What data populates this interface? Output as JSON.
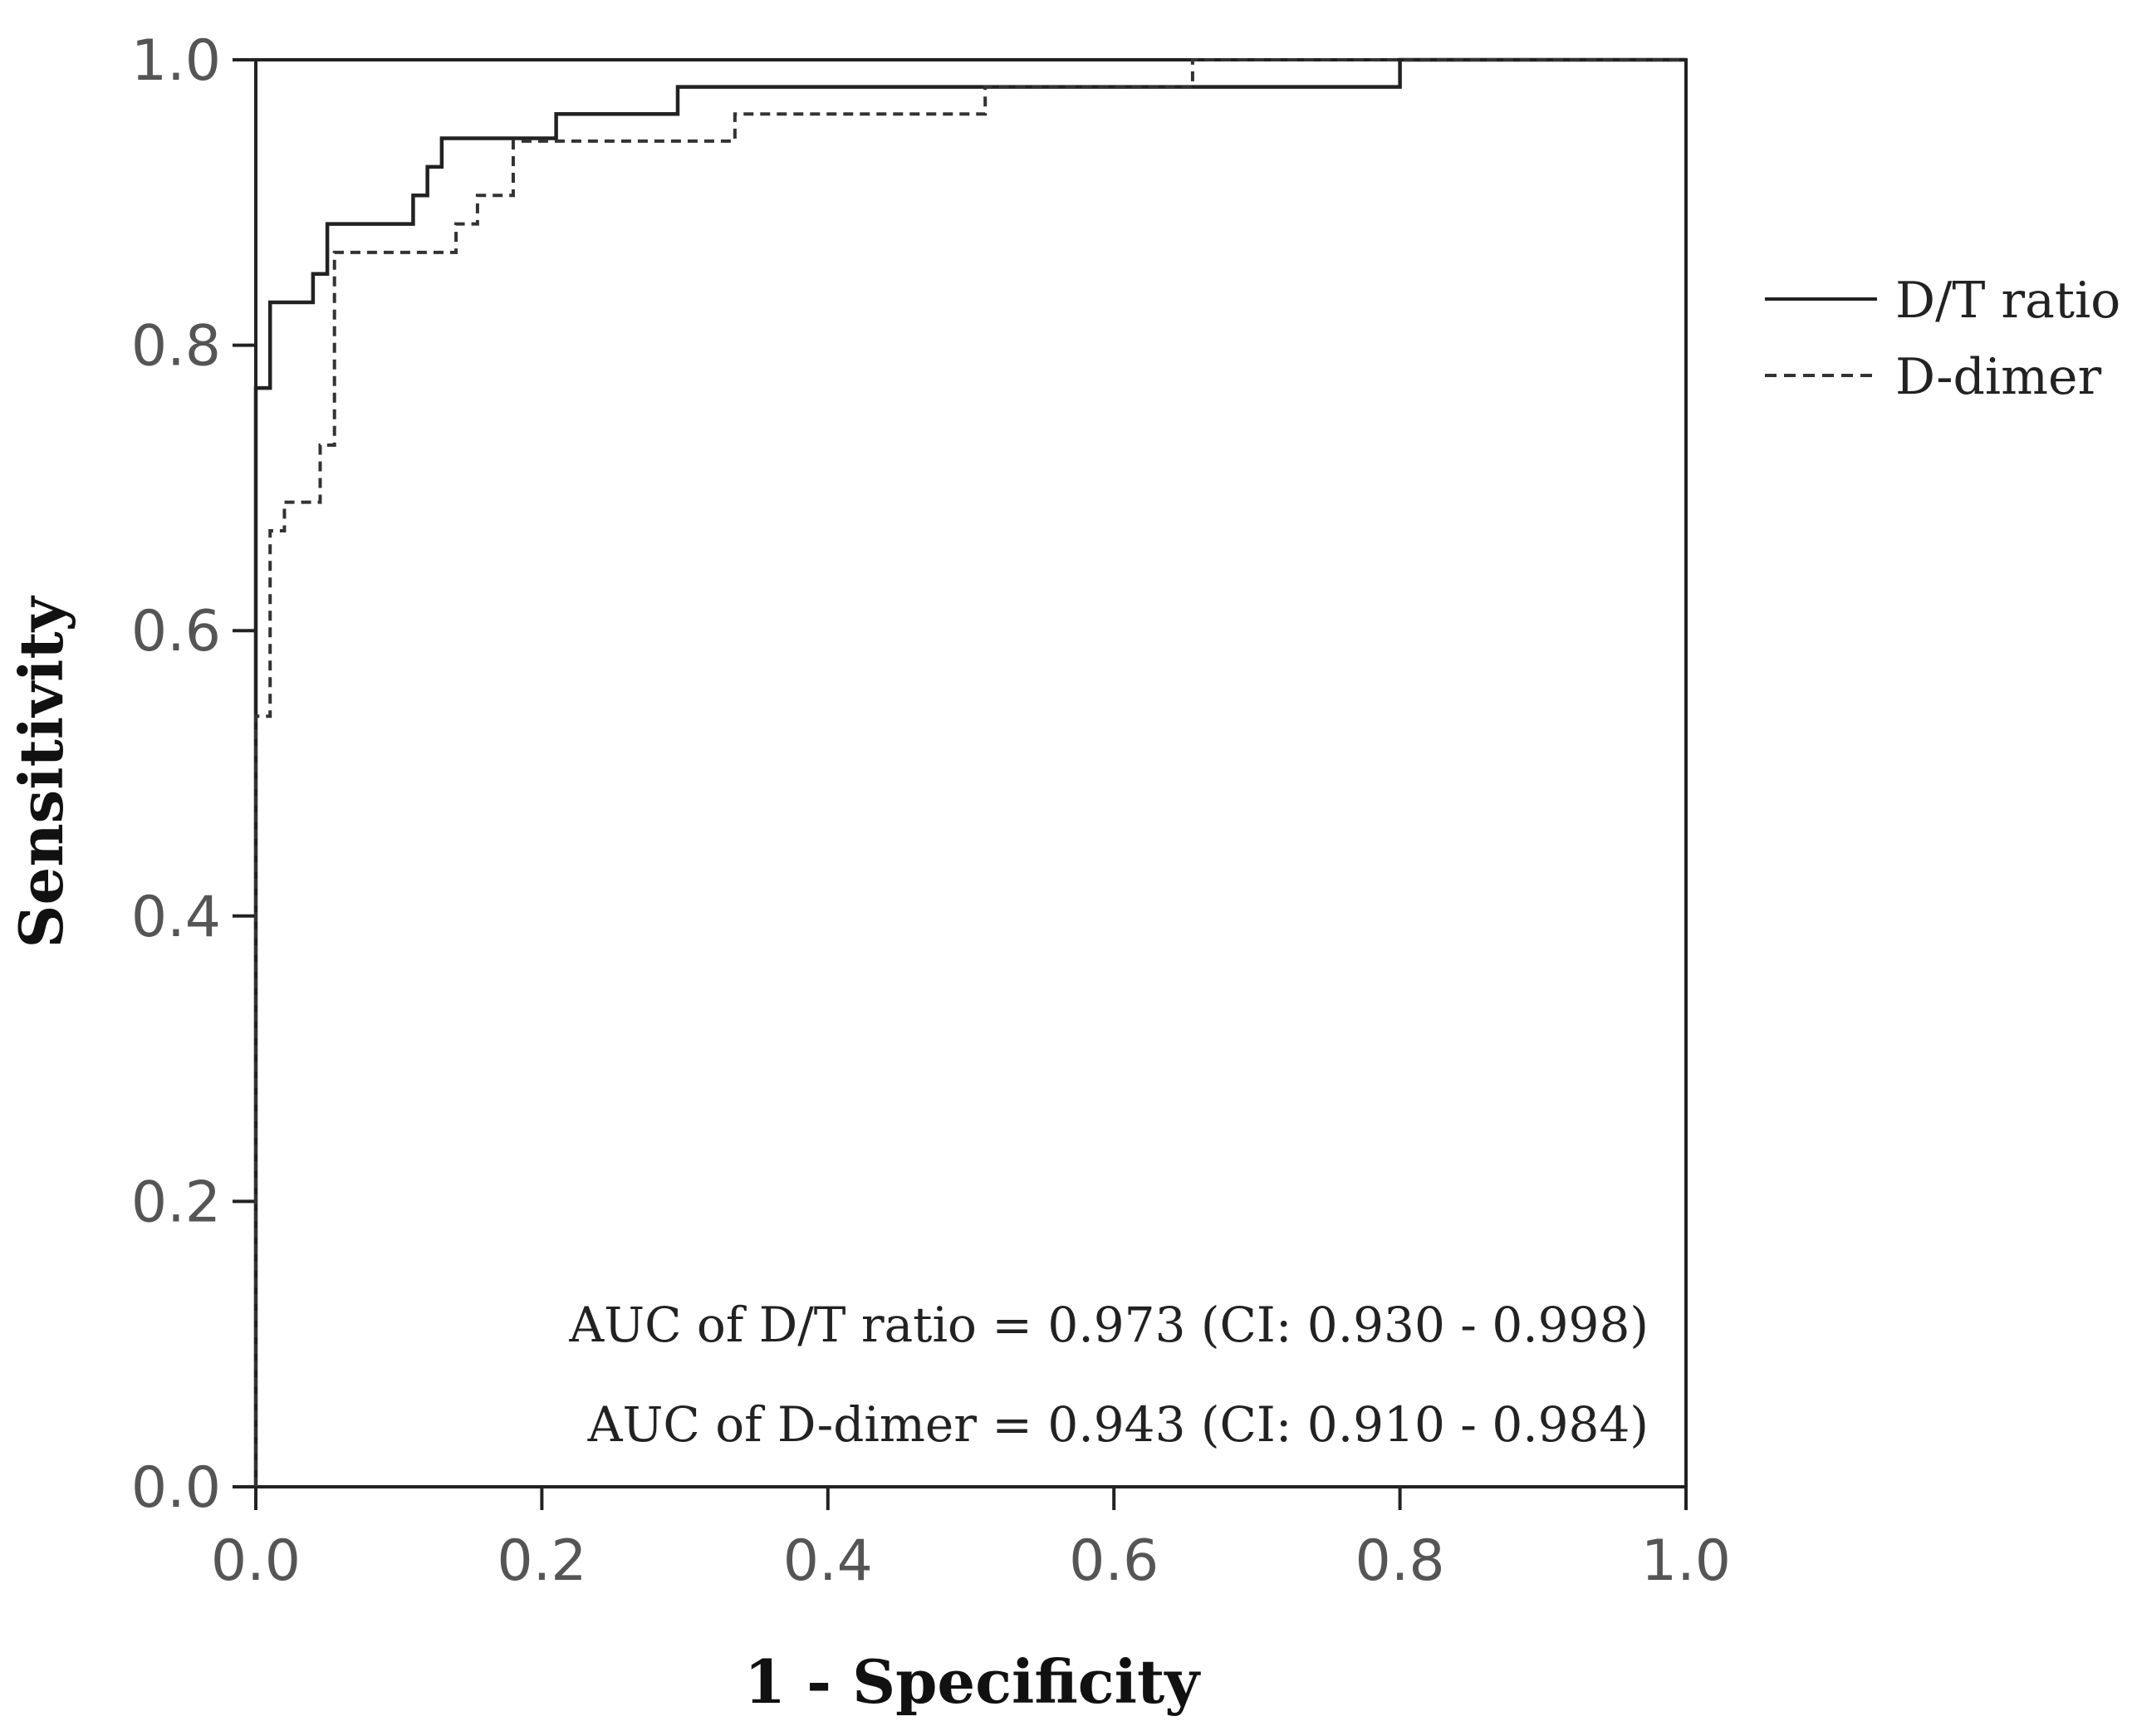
{
  "chart_data": {
    "type": "line",
    "title": "",
    "xlabel": "1 - Specificity",
    "ylabel": "Sensitivity",
    "xlim": [
      0,
      1
    ],
    "ylim": [
      0,
      1
    ],
    "x_ticks": [
      "0.0",
      "0.2",
      "0.4",
      "0.6",
      "0.8",
      "1.0"
    ],
    "y_ticks": [
      "0.0",
      "0.2",
      "0.4",
      "0.6",
      "0.8",
      "1.0"
    ],
    "grid": false,
    "legend_position": "right-top",
    "legend": [
      "D/T ratio",
      "D-dimer"
    ],
    "series": [
      {
        "name": "D/T ratio",
        "style": "solid",
        "color": "#222222",
        "points": [
          [
            0.0,
            0.0
          ],
          [
            0.0,
            0.77
          ],
          [
            0.01,
            0.77
          ],
          [
            0.01,
            0.83
          ],
          [
            0.04,
            0.83
          ],
          [
            0.04,
            0.85
          ],
          [
            0.05,
            0.85
          ],
          [
            0.05,
            0.885
          ],
          [
            0.11,
            0.885
          ],
          [
            0.11,
            0.905
          ],
          [
            0.12,
            0.905
          ],
          [
            0.12,
            0.925
          ],
          [
            0.13,
            0.925
          ],
          [
            0.13,
            0.945
          ],
          [
            0.21,
            0.945
          ],
          [
            0.21,
            0.962
          ],
          [
            0.295,
            0.962
          ],
          [
            0.295,
            0.981
          ],
          [
            0.8,
            0.981
          ],
          [
            0.8,
            1.0
          ],
          [
            1.0,
            1.0
          ]
        ]
      },
      {
        "name": "D-dimer",
        "style": "dashed",
        "color": "#333333",
        "points": [
          [
            0.0,
            0.0
          ],
          [
            0.0,
            0.54
          ],
          [
            0.01,
            0.54
          ],
          [
            0.01,
            0.67
          ],
          [
            0.02,
            0.67
          ],
          [
            0.02,
            0.69
          ],
          [
            0.045,
            0.69
          ],
          [
            0.045,
            0.73
          ],
          [
            0.055,
            0.73
          ],
          [
            0.055,
            0.865
          ],
          [
            0.14,
            0.865
          ],
          [
            0.14,
            0.885
          ],
          [
            0.155,
            0.885
          ],
          [
            0.155,
            0.905
          ],
          [
            0.18,
            0.905
          ],
          [
            0.18,
            0.943
          ],
          [
            0.335,
            0.943
          ],
          [
            0.335,
            0.962
          ],
          [
            0.51,
            0.962
          ],
          [
            0.51,
            0.981
          ],
          [
            0.655,
            0.981
          ],
          [
            0.655,
            1.0
          ],
          [
            1.0,
            1.0
          ]
        ]
      }
    ],
    "annotations": [
      "AUC of D/T ratio = 0.973 (CI: 0.930 - 0.998)",
      "AUC of D-dimer = 0.943 (CI: 0.910 - 0.984)"
    ]
  }
}
